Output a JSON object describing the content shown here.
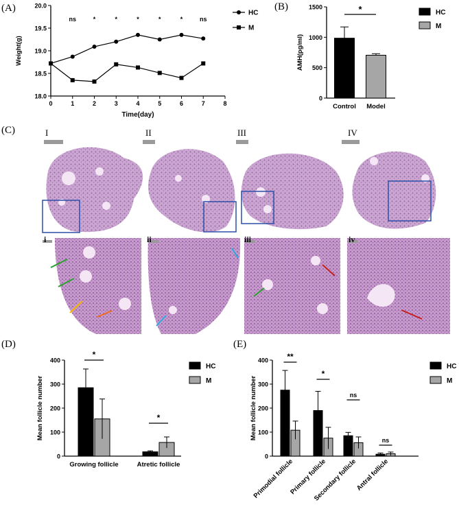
{
  "panel_labels": {
    "A": "(A)",
    "B": "(B)",
    "C": "(C)",
    "D": "(D)",
    "E": "(E)"
  },
  "histology": {
    "top_labels": [
      "I",
      "II",
      "III",
      "IV"
    ],
    "bottom_labels": [
      "i",
      "ii",
      "iii",
      "iv"
    ],
    "colors": {
      "stain": "#c9a5cf",
      "box": "#2b4fa8",
      "arrow_green": "#2aa02a",
      "arrow_yellow": "#f4b400",
      "arrow_orange": "#f26a1b",
      "arrow_blue": "#2aa9e0",
      "arrow_red": "#c41e1e"
    }
  },
  "chart_data": [
    {
      "id": "A",
      "type": "line",
      "xlabel": "Time(day)",
      "ylabel": "Weight(g)",
      "x": [
        0,
        1,
        2,
        3,
        4,
        5,
        6,
        7
      ],
      "xlim": [
        0,
        8
      ],
      "ylim": [
        18.0,
        20.0
      ],
      "xticks": [
        "0",
        "1",
        "2",
        "3",
        "4",
        "5",
        "6",
        "7",
        "8"
      ],
      "yticks": [
        "18.0",
        "18.5",
        "19.0",
        "19.5",
        "20.0"
      ],
      "series": [
        {
          "name": "HC",
          "marker": "circle",
          "values": [
            18.72,
            18.87,
            19.09,
            19.2,
            19.35,
            19.25,
            19.35,
            19.27
          ]
        },
        {
          "name": "M",
          "marker": "square",
          "values": [
            18.72,
            18.35,
            18.32,
            18.7,
            18.63,
            18.51,
            18.4,
            18.72
          ]
        }
      ],
      "significance": [
        "ns",
        "*",
        "*",
        "*",
        "*",
        "*",
        "ns"
      ]
    },
    {
      "id": "B",
      "type": "bar",
      "ylabel": "AMH(pg/ml)",
      "categories": [
        "Control",
        "Model"
      ],
      "values": [
        985,
        705
      ],
      "errors": [
        185,
        25
      ],
      "colors": [
        "#000000",
        "#a6a6a6"
      ],
      "ylim": [
        0,
        1500
      ],
      "yticks": [
        "0",
        "500",
        "1000",
        "1500"
      ],
      "legend": [
        "HC",
        "M"
      ],
      "significance": "*"
    },
    {
      "id": "D",
      "type": "bar",
      "ylabel": "Mean follicle number",
      "categories": [
        "Growing follicle",
        "Atretic follicle"
      ],
      "series": [
        {
          "name": "HC",
          "values": [
            285,
            18
          ],
          "errors": [
            78,
            4
          ]
        },
        {
          "name": "M",
          "values": [
            155,
            57
          ],
          "errors": [
            83,
            23
          ]
        }
      ],
      "ylim": [
        0,
        400
      ],
      "yticks": [
        "0",
        "100",
        "200",
        "300",
        "400"
      ],
      "significance": [
        "*",
        "*"
      ]
    },
    {
      "id": "E",
      "type": "bar",
      "ylabel": "Mean follicle number",
      "categories": [
        "Primodial follicle",
        "Primary follicle",
        "Secondary follicle",
        "Antral follicle"
      ],
      "series": [
        {
          "name": "HC",
          "values": [
            275,
            190,
            85,
            8
          ],
          "errors": [
            82,
            80,
            14,
            5
          ]
        },
        {
          "name": "M",
          "values": [
            108,
            75,
            56,
            10
          ],
          "errors": [
            38,
            45,
            24,
            7
          ]
        }
      ],
      "ylim": [
        0,
        400
      ],
      "yticks": [
        "0",
        "100",
        "200",
        "300",
        "400"
      ],
      "significance": [
        "**",
        "*",
        "ns",
        "ns"
      ]
    }
  ]
}
